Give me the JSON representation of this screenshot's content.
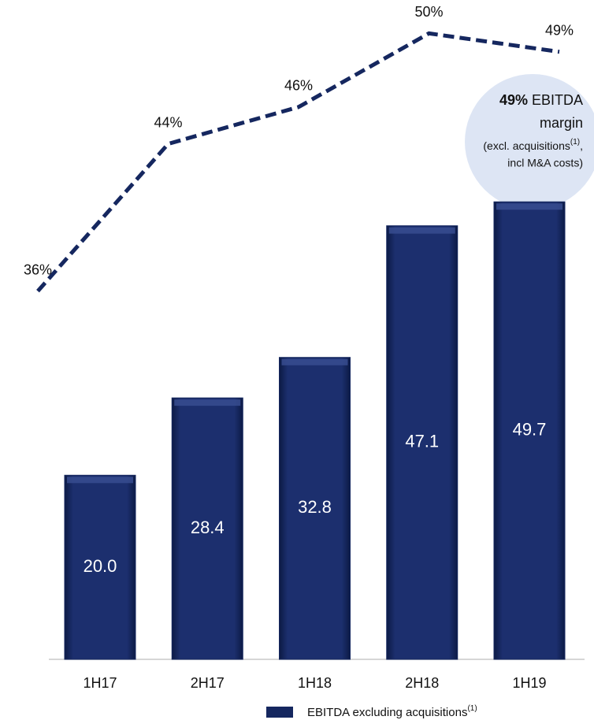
{
  "chart_data": {
    "type": "combo",
    "categories": [
      "1H17",
      "2H17",
      "1H18",
      "2H18",
      "1H19"
    ],
    "series": [
      {
        "name": "EBITDA excluding acquisitions",
        "name_note": "(1)",
        "type": "bar",
        "color": "#15275f",
        "values": [
          20.0,
          28.4,
          32.8,
          47.1,
          49.7
        ],
        "value_labels": [
          "20.0",
          "28.4",
          "32.8",
          "47.1",
          "49.7"
        ]
      },
      {
        "type": "line",
        "axis": "y2",
        "color": "#15275f",
        "dashed": true,
        "values": [
          36,
          44,
          46,
          50,
          49
        ],
        "value_labels": [
          "36%",
          "44%",
          "46%",
          "50%",
          "49%"
        ]
      }
    ],
    "ylim": [
      0,
      70
    ],
    "y2lim": [
      16,
      51
    ],
    "annotation": {
      "bold": "49%",
      "text": "EBITDA",
      "line2": "margin",
      "line3": "(excl. acquisitions",
      "line3_sup": "(1)",
      "line3_end": ",",
      "line4": "incl M&A costs)"
    }
  }
}
